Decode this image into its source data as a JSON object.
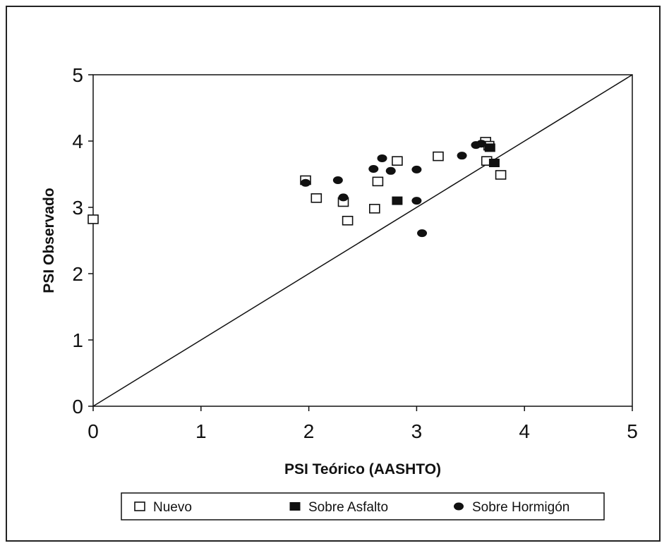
{
  "chart_data": {
    "type": "scatter",
    "xlabel": "PSI Teórico (AASHTO)",
    "ylabel": "PSI Observado",
    "xlim": [
      0,
      5
    ],
    "ylim": [
      0,
      5
    ],
    "xticks": [
      "0",
      "1",
      "2",
      "3",
      "4",
      "5"
    ],
    "yticks": [
      "0",
      "1",
      "2",
      "3",
      "4",
      "5"
    ],
    "grid": false,
    "legend_position": "bottom",
    "reference_line": {
      "x": [
        0,
        5
      ],
      "y": [
        0,
        5
      ]
    },
    "series": [
      {
        "name": "Nuevo",
        "marker": "open-square",
        "color": "#111111",
        "points": [
          [
            0.0,
            2.82
          ],
          [
            1.97,
            3.41
          ],
          [
            2.07,
            3.14
          ],
          [
            2.32,
            3.08
          ],
          [
            2.36,
            2.8
          ],
          [
            2.61,
            2.98
          ],
          [
            2.64,
            3.39
          ],
          [
            2.82,
            3.7
          ],
          [
            3.2,
            3.77
          ],
          [
            3.64,
            3.99
          ],
          [
            3.67,
            3.93
          ],
          [
            3.65,
            3.7
          ],
          [
            3.78,
            3.49
          ]
        ]
      },
      {
        "name": "Sobre Asfalto",
        "marker": "filled-square",
        "color": "#111111",
        "points": [
          [
            2.82,
            3.1
          ],
          [
            3.72,
            3.67
          ],
          [
            3.68,
            3.9
          ]
        ]
      },
      {
        "name": "Sobre Hormigón",
        "marker": "filled-circle",
        "color": "#111111",
        "points": [
          [
            1.97,
            3.37
          ],
          [
            2.27,
            3.41
          ],
          [
            2.32,
            3.15
          ],
          [
            2.6,
            3.58
          ],
          [
            2.68,
            3.74
          ],
          [
            2.76,
            3.55
          ],
          [
            3.0,
            3.57
          ],
          [
            3.0,
            3.1
          ],
          [
            3.05,
            2.61
          ],
          [
            3.42,
            3.78
          ],
          [
            3.55,
            3.94
          ],
          [
            3.6,
            3.96
          ]
        ]
      }
    ]
  }
}
